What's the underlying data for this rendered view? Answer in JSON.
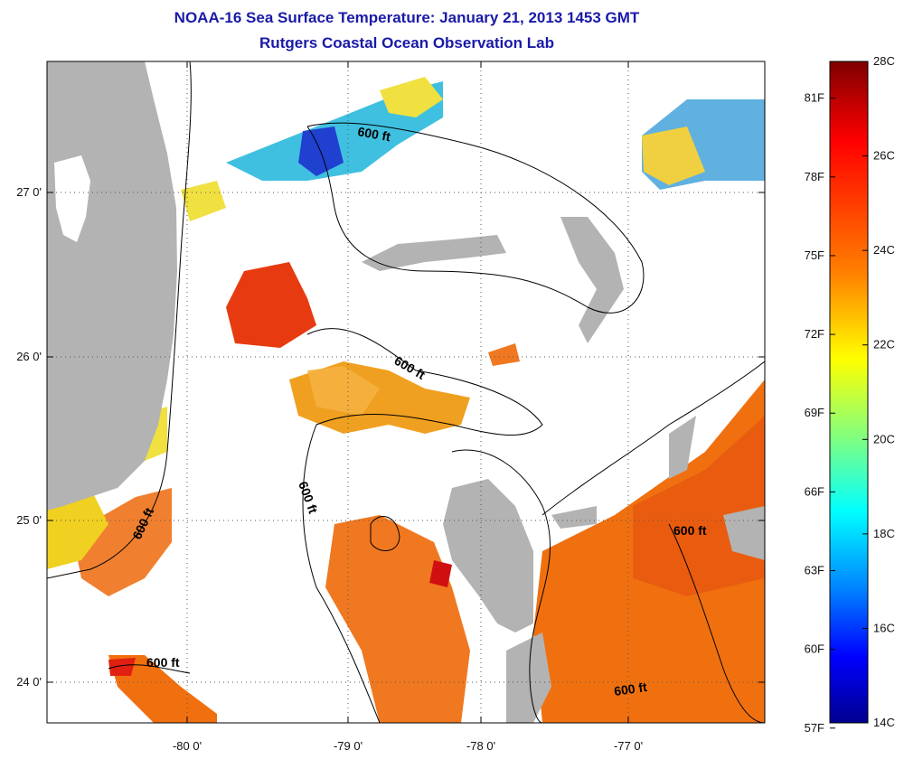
{
  "title": "NOAA-16 Sea Surface Temperature:  January 21, 2013 1453 GMT",
  "subtitle": "Rutgers Coastal Ocean Observation Lab",
  "map": {
    "x_ticks": [
      "-80 0'",
      "-79 0'",
      "-78 0'",
      "-77 0'"
    ],
    "y_ticks": [
      "27 0'",
      "26 0'",
      "25 0'",
      "24 0'"
    ],
    "contour_labels": [
      "600 ft",
      "600 ft",
      "600 ft",
      "600 ft",
      "600 ft",
      "600 ft"
    ],
    "colors": {
      "land": "#b3b3b3",
      "cloud": "#ffffff",
      "contour": "#000000"
    }
  },
  "colorbar": {
    "c_labels": [
      "28C",
      "26C",
      "24C",
      "22C",
      "20C",
      "18C",
      "16C",
      "14C"
    ],
    "f_labels": [
      "81F",
      "78F",
      "75F",
      "72F",
      "69F",
      "66F",
      "63F",
      "60F",
      "57F"
    ],
    "min_c": 14,
    "max_c": 28,
    "colors": [
      "#7f0000",
      "#ff0000",
      "#ff8000",
      "#ffff00",
      "#80ff80",
      "#00ffff",
      "#0080ff",
      "#0000ff",
      "#00008f"
    ]
  }
}
